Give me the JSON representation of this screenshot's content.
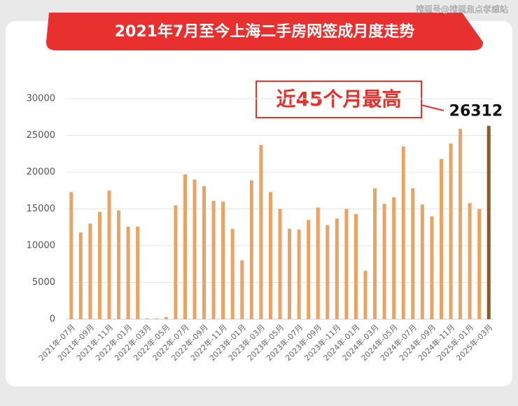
{
  "watermark": "搜狐号@搜狐焦点孝感站",
  "chart_data": {
    "type": "bar",
    "title": "2021年7月至今上海二手房网签成月度走势",
    "annotation": "近45个月最高",
    "categories": [
      "2021年-07月",
      null,
      "2021年-09月",
      null,
      "2021年-11月",
      null,
      "2022年-01月",
      null,
      "2022年-03月",
      null,
      "2022年-05月",
      null,
      "2022年-07月",
      null,
      "2022年-09月",
      null,
      "2022年-11月",
      null,
      "2023年-01月",
      null,
      "2023年-03月",
      null,
      "2023年-05月",
      null,
      "2023年-07月",
      null,
      "2023年-09月",
      null,
      "2023年-11月",
      null,
      "2024年-01月",
      null,
      "2024年-03月",
      null,
      "2024年-05月",
      null,
      "2024年-07月",
      null,
      "2024年-09月",
      null,
      "2024年-11月",
      null,
      "2025年-01月",
      null,
      "2025年-03月"
    ],
    "values": [
      17300,
      11800,
      13000,
      14600,
      17500,
      14800,
      12600,
      12600,
      100,
      100,
      300,
      15500,
      19700,
      19000,
      18100,
      16100,
      16000,
      12300,
      8000,
      18900,
      23700,
      17300,
      15000,
      12300,
      12200,
      13500,
      15200,
      12800,
      13700,
      15000,
      14300,
      6600,
      17800,
      15700,
      16600,
      23500,
      17800,
      15600,
      14000,
      21800,
      23900,
      25900,
      15800,
      15000,
      26312
    ],
    "color": "#e9a463",
    "highlight_color": "#8a5a2c",
    "ylim": [
      0,
      30000
    ],
    "yticks": [
      0,
      5000,
      10000,
      15000,
      20000,
      25000,
      30000
    ],
    "grid": true
  }
}
